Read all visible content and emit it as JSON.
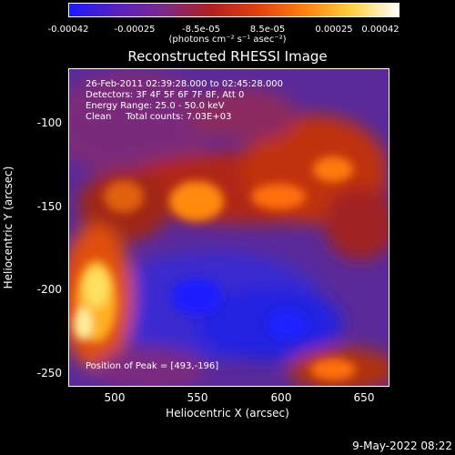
{
  "colorbar": {
    "ticks": [
      "-0.00042",
      "-0.00025",
      "-8.5e-05",
      "8.5e-05",
      "0.00025",
      "0.00042"
    ],
    "units": "(photons cm⁻² s⁻¹ asec⁻²)",
    "colors": [
      "#1a1aff",
      "#5a20c0",
      "#7a2a8a",
      "#b02020",
      "#e04010",
      "#ff8010",
      "#ffd040",
      "#ffffff"
    ]
  },
  "title": "Reconstructed RHESSI Image",
  "info": {
    "line1": "26-Feb-2011 02:39:28.000 to 02:45:28.000",
    "line2": "Detectors: 3F 4F 5F 6F 7F 8F, Att 0",
    "line3": "Energy Range: 25.0 - 50.0 keV",
    "line4": "Clean     Total counts: 7.03E+03"
  },
  "peak": "Position of Peak = [493,-196]",
  "axes": {
    "xlabel": "Heliocentric X (arcsec)",
    "ylabel": "Heliocentric Y (arcsec)",
    "xticks": [
      "500",
      "550",
      "600",
      "650"
    ],
    "yticks": [
      "-100",
      "-150",
      "-200",
      "-250"
    ],
    "xlim": [
      472,
      665
    ],
    "ylim": [
      -262,
      -70
    ]
  },
  "timestamp": "9-May-2022 08:22"
}
